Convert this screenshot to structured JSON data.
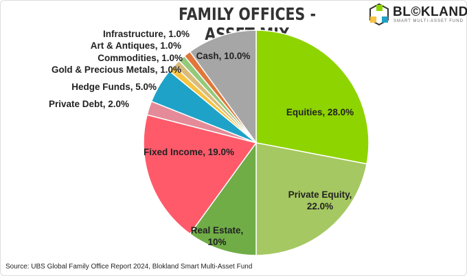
{
  "chart_data": {
    "type": "pie",
    "title": "FAMILY OFFICES - ASSET MIX",
    "start_angle": "12 o'clock",
    "direction": "clockwise",
    "slices": [
      {
        "label": "Equities, 28.0%",
        "name": "Equities",
        "value": 28.0,
        "color": "#8ed400"
      },
      {
        "label": "Private Equity,",
        "label2": "22.0%",
        "name": "Private Equity",
        "value": 22.0,
        "color": "#a5c862"
      },
      {
        "label": "Real Estate,",
        "label2": "10%",
        "name": "Real Estate",
        "value": 10.0,
        "color": "#70ad47"
      },
      {
        "label": "Fixed Income, 19.0%",
        "name": "Fixed Income",
        "value": 19.0,
        "color": "#ff5a6a"
      },
      {
        "label": "Private Debt, 2.0%",
        "name": "Private Debt",
        "value": 2.0,
        "color": "#e58a98"
      },
      {
        "label": "Hedge Funds, 5.0%",
        "name": "Hedge Funds",
        "value": 5.0,
        "color": "#1ea2c8"
      },
      {
        "label": "Gold & Precious Metals, 1.0%",
        "name": "Gold & Precious Metals",
        "value": 1.0,
        "color": "#f6c343"
      },
      {
        "label": "Commodities, 1.0%",
        "name": "Commodities",
        "value": 1.0,
        "color": "#d9bb7a"
      },
      {
        "label": "Art & Antiques, 1.0%",
        "name": "Art & Antiques",
        "value": 1.0,
        "color": "#93c97b"
      },
      {
        "label": "Infrastructure, 1.0%",
        "name": "Infrastructure",
        "value": 1.0,
        "color": "#e0773a"
      },
      {
        "label": "Cash, 10.0%",
        "name": "Cash",
        "value": 10.0,
        "color": "#a6a6a6"
      }
    ]
  },
  "logo": {
    "brand": "BL©KLAND",
    "tagline": "SMART MULTI-ASSET FUND"
  },
  "source": "Source: UBS Global Family Office Report 2024, Blokland Smart Multi-Asset Fund"
}
